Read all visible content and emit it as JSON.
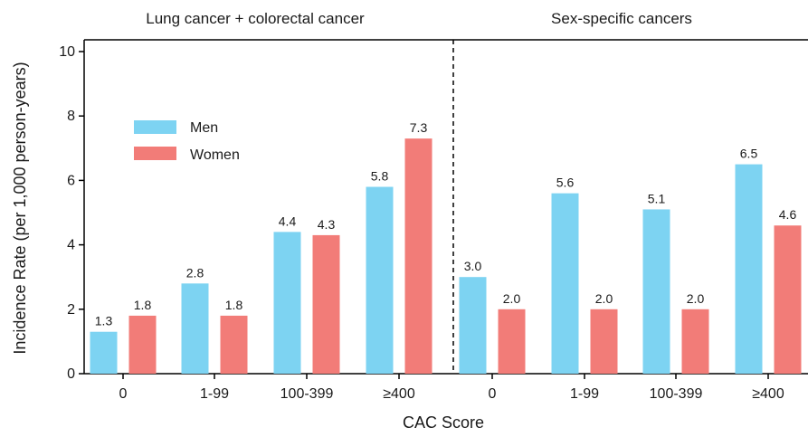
{
  "chart_data": {
    "type": "bar",
    "ylabel": "Incidence Rate (per 1,000 person-years)",
    "xlabel": "CAC Score",
    "ylim": [
      0,
      10
    ],
    "yticks": [
      0,
      2,
      4,
      6,
      8,
      10
    ],
    "grid": false,
    "legend": {
      "placement": "top-left",
      "entries": [
        "Men",
        "Women"
      ]
    },
    "series_colors": {
      "Men": "#7DD3F2",
      "Women": "#F27C78"
    },
    "panels": [
      {
        "title": "Lung cancer + colorectal cancer",
        "categories": [
          "0",
          "1-99",
          "100-399",
          "≥400"
        ],
        "series": [
          {
            "name": "Men",
            "values": [
              1.3,
              2.8,
              4.4,
              5.8
            ],
            "labels": [
              "1.3",
              "2.8",
              "4.4",
              "5.8"
            ]
          },
          {
            "name": "Women",
            "values": [
              1.8,
              1.8,
              4.3,
              7.3
            ],
            "labels": [
              "1.8",
              "1.8",
              "4.3",
              "7.3"
            ]
          }
        ]
      },
      {
        "title": "Sex-specific cancers",
        "categories": [
          "0",
          "1-99",
          "100-399",
          "≥400"
        ],
        "series": [
          {
            "name": "Men",
            "values": [
              3.0,
              5.6,
              5.1,
              6.5
            ],
            "labels": [
              "3.0",
              "5.6",
              "5.1",
              "6.5"
            ]
          },
          {
            "name": "Women",
            "values": [
              2.0,
              2.0,
              2.0,
              4.6
            ],
            "labels": [
              "2.0",
              "2.0",
              "2.0",
              "4.6"
            ]
          }
        ]
      }
    ]
  }
}
